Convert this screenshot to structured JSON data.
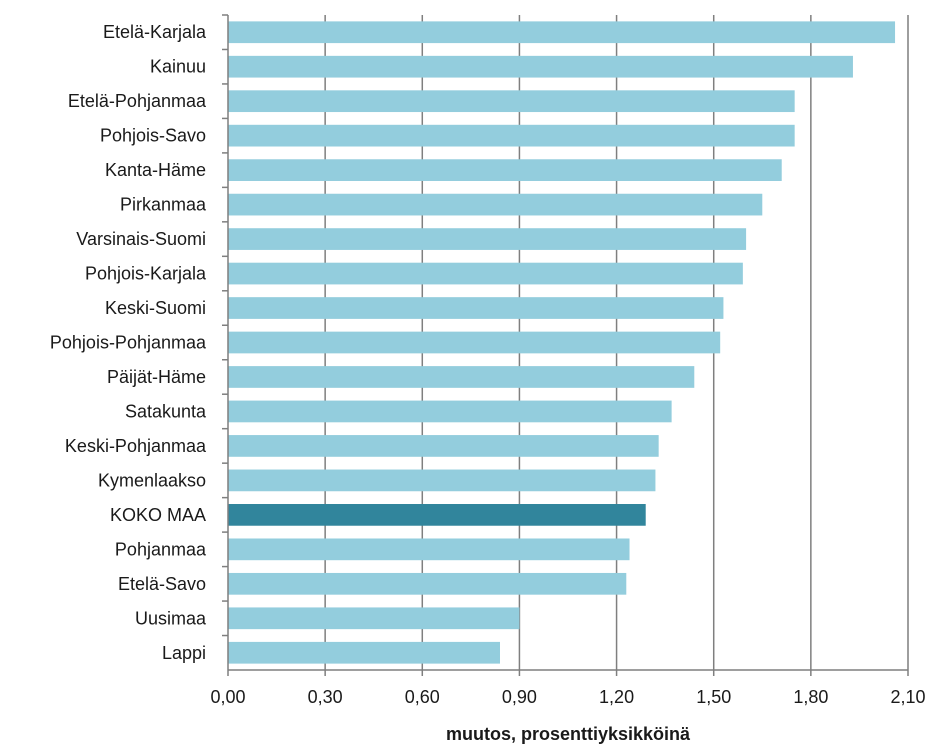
{
  "chart_data": {
    "type": "bar",
    "orientation": "horizontal",
    "categories": [
      "Etelä-Karjala",
      "Kainuu",
      "Etelä-Pohjanmaa",
      "Pohjois-Savo",
      "Kanta-Häme",
      "Pirkanmaa",
      "Varsinais-Suomi",
      "Pohjois-Karjala",
      "Keski-Suomi",
      "Pohjois-Pohjanmaa",
      "Päijät-Häme",
      "Satakunta",
      "Keski-Pohjanmaa",
      "Kymenlaakso",
      "KOKO MAA",
      "Pohjanmaa",
      "Etelä-Savo",
      "Uusimaa",
      "Lappi"
    ],
    "values": [
      2.06,
      1.93,
      1.75,
      1.75,
      1.71,
      1.65,
      1.6,
      1.59,
      1.53,
      1.52,
      1.44,
      1.37,
      1.33,
      1.32,
      1.29,
      1.24,
      1.23,
      0.9,
      0.84
    ],
    "highlight_category": "KOKO MAA",
    "xlabel": "muutos, prosenttiyksikköinä",
    "ylabel": "",
    "xlim": [
      0,
      2.1
    ],
    "xticks": [
      "0,00",
      "0,30",
      "0,60",
      "0,90",
      "1,20",
      "1,50",
      "1,80",
      "2,10"
    ],
    "grid": true,
    "legend": "none",
    "colors": {
      "bar": "#93cddd",
      "highlight": "#31859c",
      "grid": "#7f7f7f"
    }
  }
}
